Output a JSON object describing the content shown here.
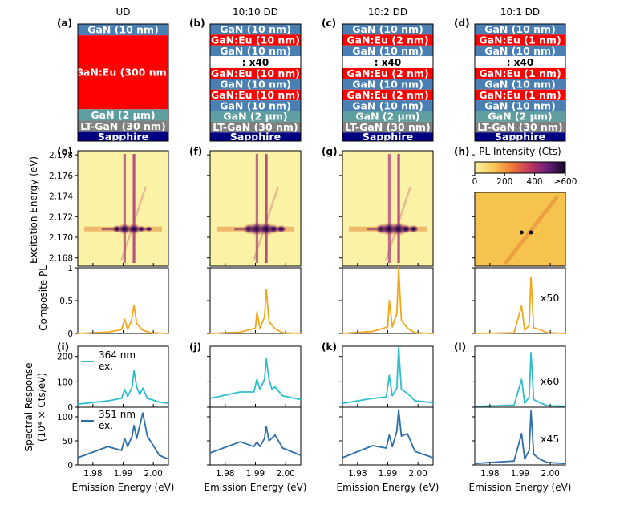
{
  "stacks": [
    {
      "tag": "(a)",
      "title": "UD",
      "layers": [
        {
          "label": "GaN (10 nm)",
          "color": "#4a7fb4",
          "h": 1
        },
        {
          "label": "GaN:Eu (300 nm)",
          "color": "#ff0000",
          "h": 6.5
        },
        {
          "label": "GaN (2 µm)",
          "color": "#5f9ea0",
          "h": 1
        },
        {
          "label": "LT-GaN (30 nm)",
          "color": "#808080",
          "h": 1
        },
        {
          "label": "Sapphire",
          "color": "#000080",
          "h": 0.8
        }
      ]
    },
    {
      "tag": "(b)",
      "title": "10:10 DD",
      "layers": [
        {
          "label": "GaN (10 nm)",
          "color": "#4a7fb4",
          "h": 1
        },
        {
          "label": "GaN:Eu (10 nm)",
          "color": "#ff0000",
          "h": 1
        },
        {
          "label": "GaN (10 nm)",
          "color": "#4a7fb4",
          "h": 1
        },
        {
          "label": ": x40",
          "color": "#ffffff",
          "h": 1.1,
          "dark": true
        },
        {
          "label": "GaN:Eu (10 nm)",
          "color": "#ff0000",
          "h": 1
        },
        {
          "label": "GaN (10 nm)",
          "color": "#4a7fb4",
          "h": 1
        },
        {
          "label": "GaN:Eu (10 nm)",
          "color": "#ff0000",
          "h": 1
        },
        {
          "label": "GaN (10 nm)",
          "color": "#4a7fb4",
          "h": 1
        },
        {
          "label": "GaN (2 µm)",
          "color": "#5f9ea0",
          "h": 1
        },
        {
          "label": "LT-GaN (30 nm)",
          "color": "#808080",
          "h": 1
        },
        {
          "label": "Sapphire",
          "color": "#000080",
          "h": 0.8
        }
      ]
    },
    {
      "tag": "(c)",
      "title": "10:2 DD",
      "layers": [
        {
          "label": "GaN (10 nm)",
          "color": "#4a7fb4",
          "h": 1
        },
        {
          "label": "GaN:Eu (2 nm)",
          "color": "#ff0000",
          "h": 1
        },
        {
          "label": "GaN (10 nm)",
          "color": "#4a7fb4",
          "h": 1
        },
        {
          "label": ": x40",
          "color": "#ffffff",
          "h": 1.1,
          "dark": true
        },
        {
          "label": "GaN:Eu (2 nm)",
          "color": "#ff0000",
          "h": 1
        },
        {
          "label": "GaN (10 nm)",
          "color": "#4a7fb4",
          "h": 1
        },
        {
          "label": "GaN:Eu (2 nm)",
          "color": "#ff0000",
          "h": 1
        },
        {
          "label": "GaN (10 nm)",
          "color": "#4a7fb4",
          "h": 1
        },
        {
          "label": "GaN (2 µm)",
          "color": "#5f9ea0",
          "h": 1
        },
        {
          "label": "LT-GaN (30 nm)",
          "color": "#808080",
          "h": 1
        },
        {
          "label": "Sapphire",
          "color": "#000080",
          "h": 0.8
        }
      ]
    },
    {
      "tag": "(d)",
      "title": "10:1 DD",
      "layers": [
        {
          "label": "GaN (10 nm)",
          "color": "#4a7fb4",
          "h": 1
        },
        {
          "label": "GaN:Eu (1 nm)",
          "color": "#ff0000",
          "h": 1
        },
        {
          "label": "GaN (10 nm)",
          "color": "#4a7fb4",
          "h": 1
        },
        {
          "label": ": x40",
          "color": "#ffffff",
          "h": 1.1,
          "dark": true
        },
        {
          "label": "GaN:Eu (1 nm)",
          "color": "#ff0000",
          "h": 1
        },
        {
          "label": "GaN (10 nm)",
          "color": "#4a7fb4",
          "h": 1
        },
        {
          "label": "GaN:Eu (1 nm)",
          "color": "#ff0000",
          "h": 1
        },
        {
          "label": "GaN (10 nm)",
          "color": "#4a7fb4",
          "h": 1
        },
        {
          "label": "GaN (2 µm)",
          "color": "#5f9ea0",
          "h": 1
        },
        {
          "label": "LT-GaN (30 nm)",
          "color": "#808080",
          "h": 1
        },
        {
          "label": "Sapphire",
          "color": "#000080",
          "h": 0.8
        }
      ]
    }
  ],
  "map_tags": [
    "(e)",
    "(f)",
    "(g)",
    "(h)"
  ],
  "spec_tags": [
    "(i)",
    "(j)",
    "(k)",
    "(l)"
  ],
  "colorbar": {
    "title": "PL Intensity (Cts)",
    "ticks": [
      "0",
      "200",
      "400",
      "≥600"
    ]
  },
  "labels": {
    "excitation_axis": "Excitation Energy (eV)",
    "composite_axis": "Composite PL",
    "spectral_axis_1": "Spectral Response",
    "spectral_axis_2": "(10⁴ × Cts/eV)",
    "x_axis": "Emission Energy (eV)",
    "legend_364": "364 nm ex.",
    "legend_351": "351 nm ex."
  },
  "multipliers": {
    "composite": "x50",
    "spec364": "x60",
    "spec351": "x45"
  },
  "colors": {
    "composite": "#f2a81d",
    "ex364": "#2fbfcc",
    "ex351": "#2e6fa8",
    "map_bg": "#fbf2a6"
  },
  "chart_data": {
    "type": "line",
    "x_range": [
      1.975,
      2.005
    ],
    "x_ticks": [
      1.98,
      1.99,
      2.0
    ],
    "excitation_range": [
      2.1672,
      2.1784
    ],
    "excitation_ticks": [
      2.168,
      2.17,
      2.172,
      2.174,
      2.176,
      2.178
    ],
    "composite_ylim": [
      0,
      1.0
    ],
    "composite_yticks": [
      0.0,
      0.5,
      1.0
    ],
    "spec364_ylim": [
      0,
      240
    ],
    "spec364_yticks": [
      0,
      100,
      200
    ],
    "spec351_ylim": [
      0,
      120
    ],
    "spec351_yticks": [
      0,
      50,
      100
    ],
    "series": [
      {
        "sample": "UD",
        "composite": [
          [
            1.975,
            0
          ],
          [
            1.985,
            0.02
          ],
          [
            1.9895,
            0.06
          ],
          [
            1.9905,
            0.22
          ],
          [
            1.9915,
            0.06
          ],
          [
            1.9928,
            0.2
          ],
          [
            1.9936,
            0.43
          ],
          [
            1.9945,
            0.15
          ],
          [
            1.9965,
            0.05
          ],
          [
            1.999,
            0.01
          ],
          [
            2.005,
            0
          ]
        ],
        "ex364": [
          [
            1.975,
            12
          ],
          [
            1.985,
            25
          ],
          [
            1.9895,
            35
          ],
          [
            1.9905,
            70
          ],
          [
            1.9915,
            42
          ],
          [
            1.993,
            80
          ],
          [
            1.9936,
            145
          ],
          [
            1.9945,
            80
          ],
          [
            1.9955,
            50
          ],
          [
            1.9965,
            75
          ],
          [
            1.998,
            35
          ],
          [
            2.002,
            20
          ],
          [
            2.005,
            15
          ]
        ],
        "ex351": [
          [
            1.975,
            15
          ],
          [
            1.985,
            38
          ],
          [
            1.9895,
            30
          ],
          [
            1.9905,
            55
          ],
          [
            1.9915,
            38
          ],
          [
            1.993,
            60
          ],
          [
            1.9936,
            82
          ],
          [
            1.9945,
            55
          ],
          [
            1.9965,
            108
          ],
          [
            1.998,
            60
          ],
          [
            2.002,
            20
          ],
          [
            2.005,
            12
          ]
        ]
      },
      {
        "sample": "10:10 DD",
        "composite": [
          [
            1.975,
            0
          ],
          [
            1.985,
            0.02
          ],
          [
            1.99,
            0.08
          ],
          [
            1.9905,
            0.33
          ],
          [
            1.9915,
            0.08
          ],
          [
            1.993,
            0.25
          ],
          [
            1.9936,
            0.67
          ],
          [
            1.9945,
            0.18
          ],
          [
            1.9965,
            0.07
          ],
          [
            1.999,
            0.01
          ],
          [
            2.005,
            0
          ]
        ],
        "ex364": [
          [
            1.975,
            35
          ],
          [
            1.985,
            60
          ],
          [
            1.9895,
            60
          ],
          [
            1.9905,
            110
          ],
          [
            1.9915,
            70
          ],
          [
            1.993,
            110
          ],
          [
            1.9936,
            190
          ],
          [
            1.9945,
            110
          ],
          [
            1.9955,
            70
          ],
          [
            1.9965,
            80
          ],
          [
            1.999,
            45
          ],
          [
            2.005,
            30
          ]
        ],
        "ex351": [
          [
            1.975,
            25
          ],
          [
            1.985,
            48
          ],
          [
            1.9895,
            38
          ],
          [
            1.9905,
            48
          ],
          [
            1.9915,
            38
          ],
          [
            1.993,
            55
          ],
          [
            1.9936,
            80
          ],
          [
            1.9945,
            50
          ],
          [
            1.9965,
            62
          ],
          [
            1.999,
            35
          ],
          [
            2.005,
            20
          ]
        ]
      },
      {
        "sample": "10:2 DD",
        "composite": [
          [
            1.975,
            0
          ],
          [
            1.985,
            0.03
          ],
          [
            1.99,
            0.1
          ],
          [
            1.9905,
            0.5
          ],
          [
            1.9915,
            0.1
          ],
          [
            1.993,
            0.3
          ],
          [
            1.9936,
            1.0
          ],
          [
            1.9945,
            0.2
          ],
          [
            1.9965,
            0.08
          ],
          [
            1.999,
            0.01
          ],
          [
            2.005,
            0
          ]
        ],
        "ex364": [
          [
            1.975,
            15
          ],
          [
            1.985,
            35
          ],
          [
            1.9895,
            40
          ],
          [
            1.9905,
            125
          ],
          [
            1.9915,
            45
          ],
          [
            1.993,
            75
          ],
          [
            1.9936,
            235
          ],
          [
            1.9945,
            70
          ],
          [
            1.9965,
            55
          ],
          [
            1.999,
            25
          ],
          [
            2.005,
            18
          ]
        ],
        "ex351": [
          [
            1.975,
            15
          ],
          [
            1.985,
            40
          ],
          [
            1.9895,
            35
          ],
          [
            1.9905,
            62
          ],
          [
            1.9915,
            38
          ],
          [
            1.993,
            70
          ],
          [
            1.9936,
            115
          ],
          [
            1.9945,
            60
          ],
          [
            1.9965,
            65
          ],
          [
            1.999,
            28
          ],
          [
            2.005,
            15
          ]
        ]
      },
      {
        "sample": "10:1 DD",
        "composite": [
          [
            1.975,
            0
          ],
          [
            1.988,
            0.01
          ],
          [
            1.9905,
            0.42
          ],
          [
            1.9915,
            0.05
          ],
          [
            1.993,
            0.12
          ],
          [
            1.9936,
            0.86
          ],
          [
            1.9945,
            0.08
          ],
          [
            1.9965,
            0.06
          ],
          [
            1.999,
            0.01
          ],
          [
            2.005,
            0
          ]
        ],
        "ex364": [
          [
            1.975,
            3
          ],
          [
            1.988,
            8
          ],
          [
            1.9905,
            110
          ],
          [
            1.9915,
            15
          ],
          [
            1.993,
            40
          ],
          [
            1.9936,
            215
          ],
          [
            1.9945,
            30
          ],
          [
            1.9965,
            18
          ],
          [
            1.999,
            6
          ],
          [
            2.005,
            4
          ]
        ],
        "ex351": [
          [
            1.975,
            3
          ],
          [
            1.988,
            8
          ],
          [
            1.9905,
            65
          ],
          [
            1.9915,
            12
          ],
          [
            1.993,
            30
          ],
          [
            1.9936,
            112
          ],
          [
            1.9945,
            22
          ],
          [
            1.9965,
            12
          ],
          [
            1.999,
            5
          ],
          [
            2.005,
            3
          ]
        ]
      }
    ]
  }
}
